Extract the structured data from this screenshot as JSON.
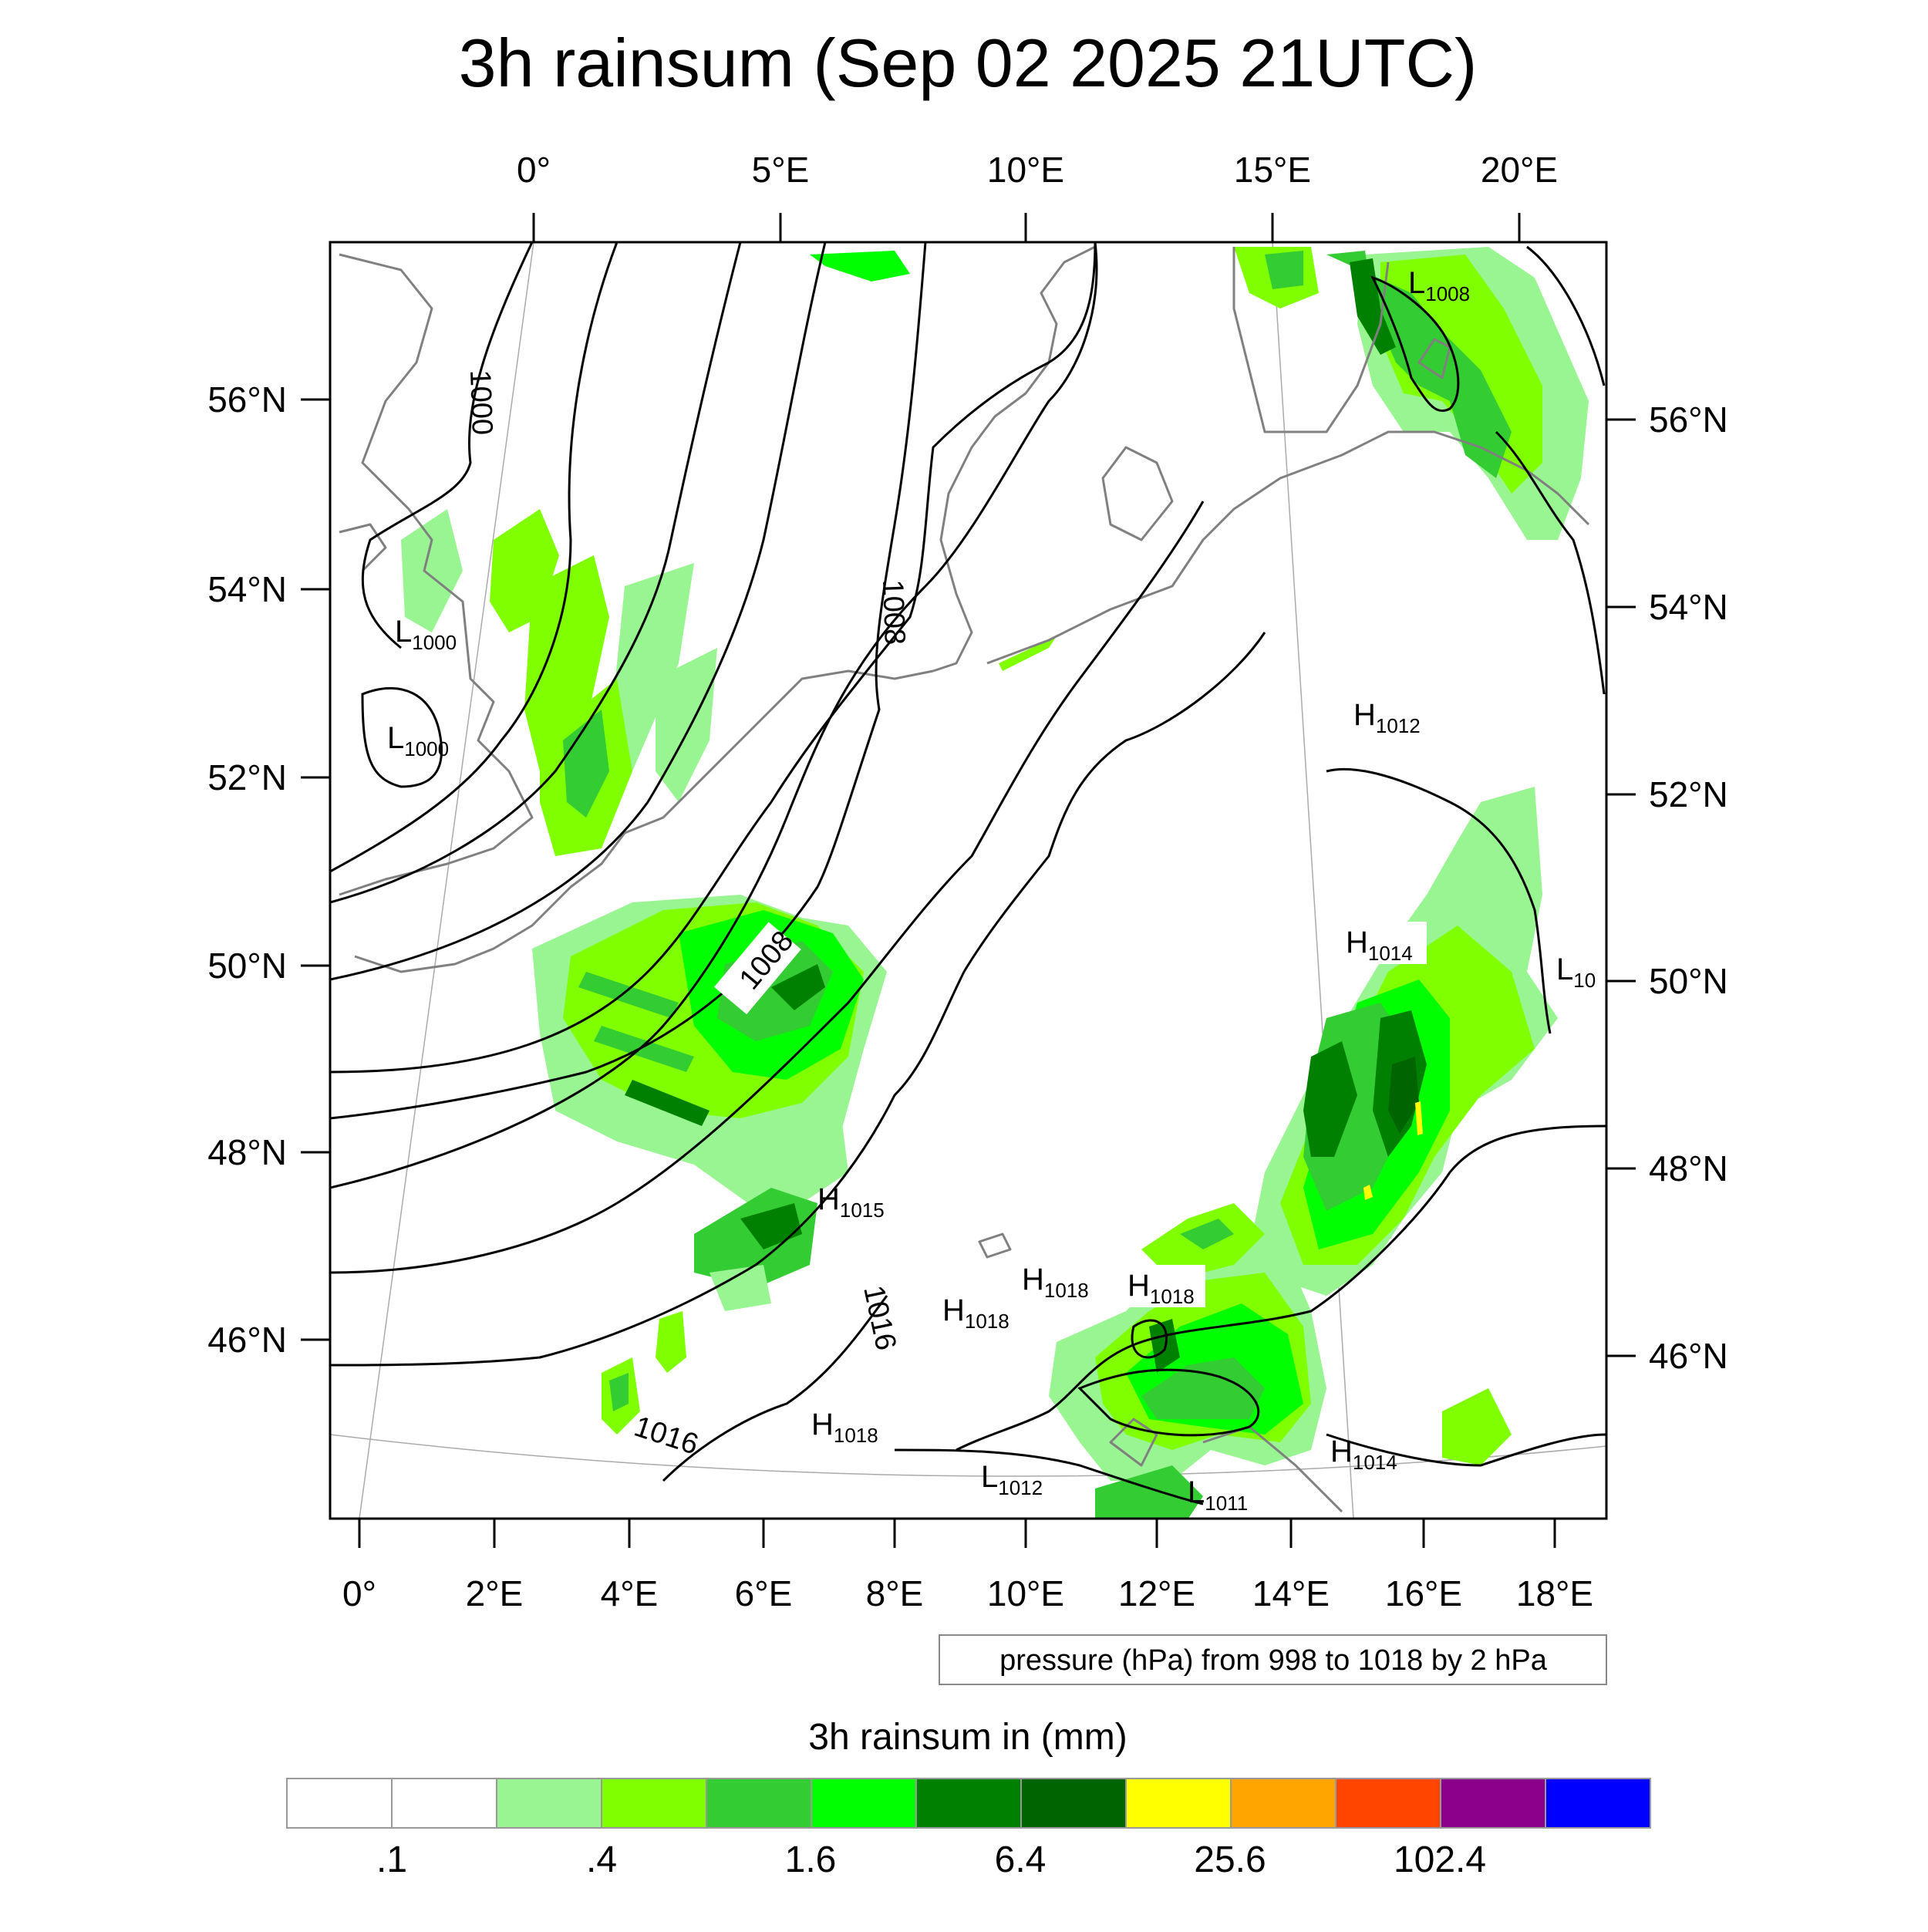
{
  "title": "3h rainsum (Sep 02 2025 21UTC)",
  "axes": {
    "top_lon": [
      "0°",
      "5°E",
      "10°E",
      "15°E",
      "20°E"
    ],
    "bottom_lon": [
      "0°",
      "2°E",
      "4°E",
      "6°E",
      "8°E",
      "10°E",
      "12°E",
      "14°E",
      "16°E",
      "18°E"
    ],
    "left_lat": [
      "56°N",
      "54°N",
      "52°N",
      "50°N",
      "48°N",
      "46°N"
    ],
    "right_lat": [
      "56°N",
      "54°N",
      "52°N",
      "50°N",
      "48°N",
      "46°N"
    ]
  },
  "contour_labels": [
    "1000",
    "1008",
    "1008",
    "1016",
    "1016"
  ],
  "pressure_centers": [
    {
      "kind": "L",
      "value": "1000"
    },
    {
      "kind": "L",
      "value": "1000"
    },
    {
      "kind": "L",
      "value": "1008"
    },
    {
      "kind": "H",
      "value": "1012"
    },
    {
      "kind": "H",
      "value": "1014"
    },
    {
      "kind": "L",
      "value": "10"
    },
    {
      "kind": "H",
      "value": "1015"
    },
    {
      "kind": "H",
      "value": "1018"
    },
    {
      "kind": "H",
      "value": "1018"
    },
    {
      "kind": "H",
      "value": "1018"
    },
    {
      "kind": "H",
      "value": "1018"
    },
    {
      "kind": "L",
      "value": "1012"
    },
    {
      "kind": "L",
      "value": "1011"
    },
    {
      "kind": "H",
      "value": "1014"
    }
  ],
  "info_note": "pressure (hPa) from 998 to 1018 by 2 hPa",
  "colorbar": {
    "title": "3h rainsum in (mm)",
    "colors": [
      "#ffffff",
      "#ffffff",
      "#99f591",
      "#7fff00",
      "#33cc33",
      "#00ff00",
      "#008000",
      "#006400",
      "#ffff00",
      "#ffa500",
      "#ff4500",
      "#8b008b",
      "#0000ff"
    ],
    "tick_labels": [
      ".1",
      ".4",
      "1.6",
      "6.4",
      "25.6",
      "102.4"
    ]
  },
  "legend_colors": {
    "coast": "#808080",
    "isobar": "#000000",
    "light_green": "#99f591",
    "lime": "#7fff00",
    "green": "#33cc33",
    "bright_green": "#00ff00",
    "dark_green": "#008000",
    "darkest_green": "#006400",
    "yellow": "#ffff00"
  }
}
